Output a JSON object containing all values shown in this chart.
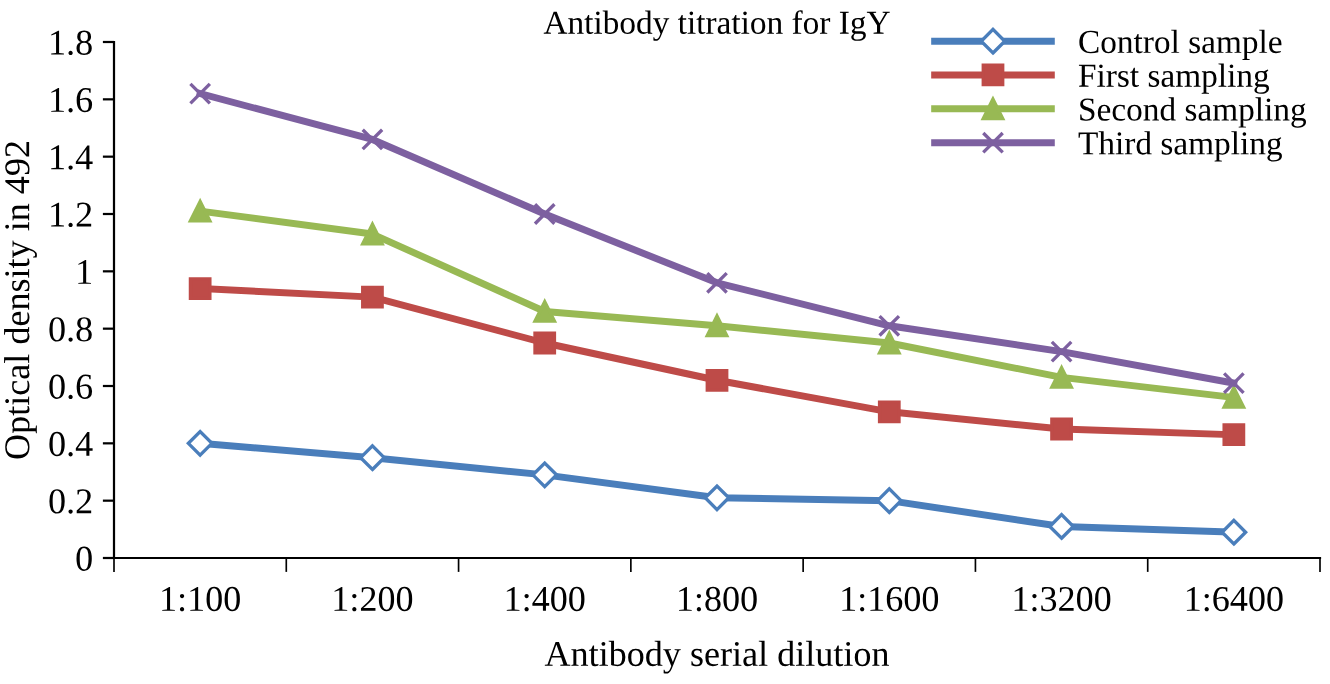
{
  "chart_data": {
    "type": "line",
    "title": "Antibody titration for IgY",
    "xlabel": "Antibody serial dilution",
    "ylabel": "Optical density in 492",
    "categories": [
      "1:100",
      "1:200",
      "1:400",
      "1:800",
      "1:1600",
      "1:3200",
      "1:6400"
    ],
    "series": [
      {
        "name": "Control sample",
        "color": "#4a7ebb",
        "marker": "diamond",
        "values": [
          0.4,
          0.35,
          0.29,
          0.21,
          0.2,
          0.11,
          0.09
        ]
      },
      {
        "name": "First sampling",
        "color": "#be4b48",
        "marker": "square",
        "values": [
          0.94,
          0.91,
          0.75,
          0.62,
          0.51,
          0.45,
          0.43
        ]
      },
      {
        "name": "Second sampling",
        "color": "#98b954",
        "marker": "triangle",
        "values": [
          1.21,
          1.13,
          0.86,
          0.81,
          0.75,
          0.63,
          0.56
        ]
      },
      {
        "name": "Third sampling",
        "color": "#7d60a0",
        "marker": "cross",
        "values": [
          1.62,
          1.46,
          1.2,
          0.96,
          0.81,
          0.72,
          0.61
        ]
      }
    ],
    "ylim": [
      0,
      1.8
    ],
    "yticks": [
      0,
      0.2,
      0.4,
      0.6,
      0.8,
      1,
      1.2,
      1.4,
      1.6,
      1.8
    ],
    "grid": false,
    "legend": "top right",
    "line_style": "solid"
  }
}
